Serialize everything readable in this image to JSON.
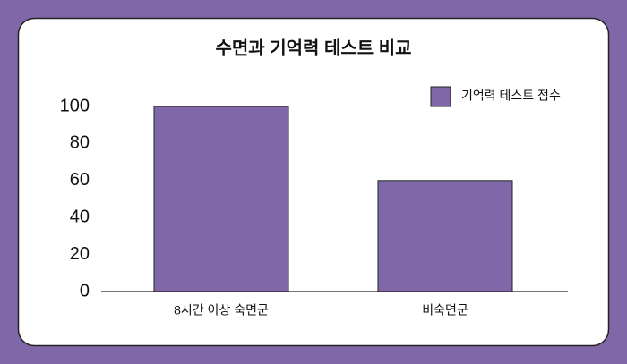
{
  "chart_data": {
    "type": "bar",
    "title": "수면과 기억력 테스트 비교",
    "categories": [
      "8시간 이상 숙면군",
      "비숙면군"
    ],
    "series": [
      {
        "name": "기억력 테스트 점수",
        "color": "#8068a8",
        "values": [
          100,
          60
        ]
      }
    ],
    "ylim": [
      0,
      100
    ],
    "yticks": [
      0,
      20,
      40,
      60,
      80,
      100
    ],
    "grid": false,
    "legend": "top-right"
  }
}
